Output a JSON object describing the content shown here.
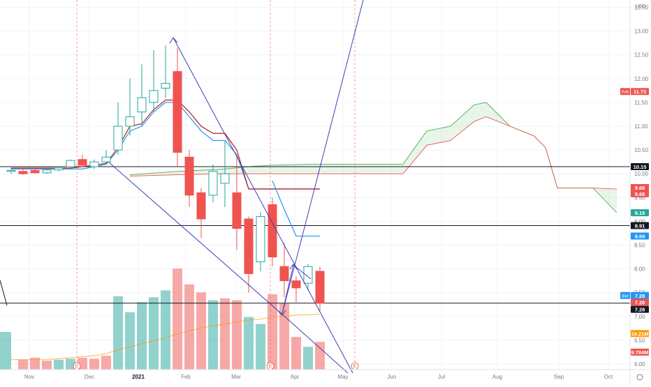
{
  "chart_data": {
    "type": "candlestick",
    "currency": "USD",
    "x_tick_labels": [
      "Nov",
      "Dec",
      "2021",
      "Feb",
      "Mar",
      "Apr",
      "May",
      "Jun",
      "Jul",
      "Aug",
      "Sep",
      "Oct"
    ],
    "y_tick_labels": [
      "6.00",
      "6.50",
      "7.00",
      "7.50",
      "8.00",
      "8.50",
      "9.00",
      "9.50",
      "10.00",
      "10.50",
      "11.00",
      "11.50",
      "12.00",
      "12.50",
      "13.00",
      "13.50"
    ],
    "ylim": [
      5.85,
      13.6
    ],
    "candles": [
      {
        "o": 10.05,
        "h": 10.12,
        "l": 10.0,
        "c": 10.07
      },
      {
        "o": 10.05,
        "h": 10.1,
        "l": 9.98,
        "c": 10.0
      },
      {
        "o": 10.07,
        "h": 10.12,
        "l": 10.0,
        "c": 10.02
      },
      {
        "o": 10.02,
        "h": 10.1,
        "l": 10.0,
        "c": 10.08
      },
      {
        "o": 10.08,
        "h": 10.15,
        "l": 10.05,
        "c": 10.12
      },
      {
        "o": 10.15,
        "h": 10.3,
        "l": 10.12,
        "c": 10.28
      },
      {
        "o": 10.3,
        "h": 10.4,
        "l": 10.15,
        "c": 10.18
      },
      {
        "o": 10.15,
        "h": 10.3,
        "l": 10.1,
        "c": 10.25
      },
      {
        "o": 10.25,
        "h": 10.5,
        "l": 10.2,
        "c": 10.35
      },
      {
        "o": 10.5,
        "h": 11.5,
        "l": 10.4,
        "c": 11.0
      },
      {
        "o": 11.0,
        "h": 12.0,
        "l": 10.8,
        "c": 11.2
      },
      {
        "o": 11.3,
        "h": 12.3,
        "l": 11.0,
        "c": 11.6
      },
      {
        "o": 11.5,
        "h": 12.6,
        "l": 11.3,
        "c": 11.75
      },
      {
        "o": 11.8,
        "h": 12.7,
        "l": 11.6,
        "c": 11.9
      },
      {
        "o": 12.15,
        "h": 12.65,
        "l": 10.15,
        "c": 10.45
      },
      {
        "o": 10.35,
        "h": 10.5,
        "l": 9.3,
        "c": 9.55
      },
      {
        "o": 9.6,
        "h": 9.7,
        "l": 8.65,
        "c": 9.05
      },
      {
        "o": 9.55,
        "h": 10.2,
        "l": 9.4,
        "c": 10.05
      },
      {
        "o": 9.8,
        "h": 10.7,
        "l": 9.3,
        "c": 10.0
      },
      {
        "o": 9.6,
        "h": 10.4,
        "l": 8.4,
        "c": 8.85
      },
      {
        "o": 9.05,
        "h": 9.1,
        "l": 7.5,
        "c": 7.9
      },
      {
        "o": 8.15,
        "h": 9.2,
        "l": 7.95,
        "c": 9.1
      },
      {
        "o": 9.35,
        "h": 9.5,
        "l": 8.05,
        "c": 8.25
      },
      {
        "o": 8.05,
        "h": 8.55,
        "l": 7.4,
        "c": 7.75
      },
      {
        "o": 7.75,
        "h": 7.85,
        "l": 7.3,
        "c": 7.6
      },
      {
        "o": 7.7,
        "h": 8.1,
        "l": 7.55,
        "c": 8.05
      },
      {
        "o": 7.95,
        "h": 8.05,
        "l": 7.1,
        "c": 7.28
      }
    ],
    "volumes": [
      {
        "v": 3.8,
        "up": true
      },
      {
        "v": 1.0,
        "up": false
      },
      {
        "v": 1.2,
        "up": false
      },
      {
        "v": 0.9,
        "up": false
      },
      {
        "v": 1.0,
        "up": true
      },
      {
        "v": 1.1,
        "up": true
      },
      {
        "v": 1.2,
        "up": false
      },
      {
        "v": 1.1,
        "up": false
      },
      {
        "v": 1.4,
        "up": false
      },
      {
        "v": 7.4,
        "up": true
      },
      {
        "v": 5.8,
        "up": true
      },
      {
        "v": 6.8,
        "up": true
      },
      {
        "v": 7.3,
        "up": true
      },
      {
        "v": 8.0,
        "up": true
      },
      {
        "v": 10.2,
        "up": false
      },
      {
        "v": 8.6,
        "up": false
      },
      {
        "v": 7.8,
        "up": false
      },
      {
        "v": 7.0,
        "up": true
      },
      {
        "v": 7.2,
        "up": false
      },
      {
        "v": 7.0,
        "up": false
      },
      {
        "v": 5.3,
        "up": true
      },
      {
        "v": 4.6,
        "up": true
      },
      {
        "v": 7.6,
        "up": false
      },
      {
        "v": 6.7,
        "up": false
      },
      {
        "v": 3.3,
        "up": false
      },
      {
        "v": 2.3,
        "up": true
      },
      {
        "v": 2.8,
        "up": false
      }
    ],
    "conversion_line": [
      10.12,
      10.12,
      10.12,
      10.12,
      10.12,
      10.12,
      10.15,
      10.18,
      10.22,
      10.55,
      11.0,
      11.05,
      11.35,
      11.55,
      11.55,
      11.3,
      11.0,
      10.85,
      10.85,
      10.5,
      9.68,
      9.68,
      9.68,
      9.68,
      9.68,
      9.68,
      9.68
    ],
    "base_line": [
      10.1,
      10.1,
      10.1,
      10.1,
      10.1,
      10.1,
      10.1,
      10.15,
      10.2,
      10.5,
      10.9,
      11.0,
      11.3,
      11.5,
      11.5,
      11.2,
      10.9,
      10.7,
      10.7,
      10.4,
      9.68,
      9.68,
      9.68,
      9.68,
      9.68,
      9.68,
      9.68
    ],
    "lagging_span": [
      [
        22,
        9.85
      ],
      [
        23,
        9.25
      ],
      [
        24,
        8.69
      ],
      [
        25,
        8.69
      ],
      [
        26,
        8.69
      ]
    ],
    "kumo_upper": [
      [
        10,
        9.98
      ],
      [
        14,
        10.05
      ],
      [
        18,
        10.1
      ],
      [
        20,
        10.15
      ],
      [
        22,
        10.18
      ],
      [
        25,
        10.2
      ],
      [
        33,
        10.2
      ],
      [
        35,
        10.9
      ],
      [
        37,
        11.0
      ],
      [
        39,
        11.45
      ],
      [
        40,
        11.5
      ],
      [
        42,
        11.0
      ],
      [
        44,
        10.8
      ],
      [
        45,
        10.55
      ],
      [
        46,
        9.7
      ],
      [
        49,
        9.7
      ],
      [
        51,
        9.18
      ]
    ],
    "kumo_lower": [
      [
        10,
        9.95
      ],
      [
        14,
        9.98
      ],
      [
        18,
        10.0
      ],
      [
        22,
        10.0
      ],
      [
        25,
        10.0
      ],
      [
        33,
        10.0
      ],
      [
        35,
        10.6
      ],
      [
        37,
        10.7
      ],
      [
        39,
        11.1
      ],
      [
        40,
        11.2
      ],
      [
        42,
        11.0
      ],
      [
        44,
        10.8
      ],
      [
        45,
        10.55
      ],
      [
        46,
        9.7
      ],
      [
        49,
        9.7
      ],
      [
        51,
        9.68
      ]
    ],
    "volume_ma": [
      1.0,
      1.0,
      1.0,
      1.0,
      1.1,
      1.2,
      1.3,
      1.4,
      1.6,
      2.0,
      2.3,
      2.6,
      2.9,
      3.2,
      3.6,
      3.9,
      4.2,
      4.4,
      4.6,
      4.8,
      5.0,
      5.1,
      5.3,
      5.4,
      5.5,
      5.55,
      5.6
    ],
    "horizontal_lines": [
      10.15,
      8.91,
      7.28
    ],
    "price_tags": [
      {
        "label": "Ask",
        "value": "11.73",
        "y": 11.73,
        "color": "#ef5350"
      },
      {
        "label": "",
        "value": "10.15",
        "y": 10.15,
        "color": "#131722"
      },
      {
        "label": "",
        "value": "9.68",
        "y": 9.71,
        "color": "#ef5350"
      },
      {
        "label": "",
        "value": "9.68",
        "y": 9.58,
        "color": "#ef5350"
      },
      {
        "label": "",
        "value": "9.18",
        "y": 9.18,
        "color": "#26a69a"
      },
      {
        "label": "",
        "value": "8.91",
        "y": 8.91,
        "color": "#131722"
      },
      {
        "label": "",
        "value": "8.69",
        "y": 8.69,
        "color": "#2196f3"
      },
      {
        "label": "Bid",
        "value": "7.28",
        "y": 7.44,
        "color": "#2196f3"
      },
      {
        "label": "",
        "value": "7.28",
        "y": 7.3,
        "color": "#ef5350"
      },
      {
        "label": "",
        "value": "7.28",
        "y": 7.15,
        "color": "#131722"
      },
      {
        "label": "",
        "value": "19.21M",
        "y": 6.64,
        "color": "#ff9800"
      },
      {
        "label": "",
        "value": "9.784M",
        "y": 6.25,
        "color": "#ef5350"
      }
    ],
    "earnings_marker": "E"
  },
  "ui": {
    "currency_label": "USD",
    "settings_icon": "gear-icon"
  }
}
